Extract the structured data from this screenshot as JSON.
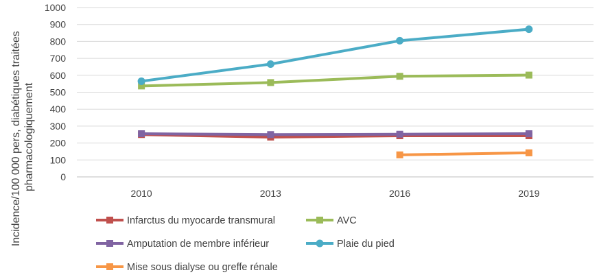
{
  "chart_data": {
    "type": "line",
    "categories": [
      "2010",
      "2013",
      "2016",
      "2019"
    ],
    "ylabel": "Incidence/100 000 pers, diabétiques traitées pharmacologiquement",
    "ylim": [
      0,
      1000
    ],
    "yticks": [
      "0",
      "100",
      "200",
      "300",
      "400",
      "500",
      "600",
      "700",
      "800",
      "900",
      "1000"
    ],
    "grid": true,
    "legend_position": "bottom",
    "series": [
      {
        "name": "Infarctus du myocarde transmural",
        "color": "#C0504D",
        "marker": "square",
        "values": [
          250,
          235,
          243,
          243
        ]
      },
      {
        "name": "AVC",
        "color": "#9BBB59",
        "marker": "square",
        "values": [
          537,
          557,
          594,
          601
        ]
      },
      {
        "name": "Amputation de membre inférieur",
        "color": "#8064A2",
        "marker": "square",
        "values": [
          255,
          250,
          252,
          255
        ]
      },
      {
        "name": "Plaie du pied",
        "color": "#4BACC6",
        "marker": "circle",
        "values": [
          565,
          666,
          804,
          872
        ]
      },
      {
        "name": "Mise sous dialyse ou greffe rénale",
        "color": "#F79646",
        "marker": "square",
        "values": [
          null,
          null,
          130,
          142
        ]
      }
    ]
  }
}
